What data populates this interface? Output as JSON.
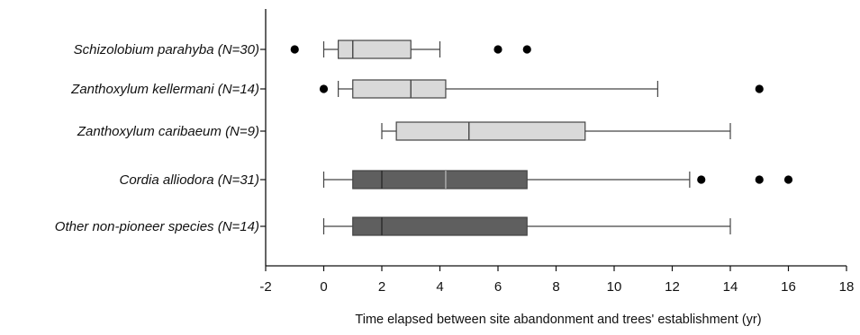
{
  "chart_data": {
    "type": "boxplot",
    "orientation": "horizontal",
    "title": "",
    "xlabel": "Time elapsed between site abandonment and trees' establishment (yr)",
    "ylabel": "",
    "xlim": [
      -2,
      18
    ],
    "xticks": [
      -2,
      0,
      2,
      4,
      6,
      8,
      10,
      12,
      14,
      16,
      18
    ],
    "grid": false,
    "legend": "none",
    "colors": {
      "pioneer_fill": "#d9d9d9",
      "nonpioneer_fill": "#5f5f5f",
      "line": "#444444",
      "outlier": "#000000"
    },
    "groups": [
      {
        "label": "Schizolobium parahyba (N=30)",
        "group": "pioneer",
        "whisker_low": 0,
        "q1": 0.5,
        "median": 1,
        "q3": 3,
        "whisker_high": 4,
        "mean": null,
        "outliers": [
          -1,
          6,
          7
        ]
      },
      {
        "label": "Zanthoxylum kellermani (N=14)",
        "group": "pioneer",
        "whisker_low": 0.5,
        "q1": 1,
        "median": 3,
        "q3": 4.2,
        "whisker_high": 11.5,
        "mean": null,
        "outliers": [
          0,
          15
        ]
      },
      {
        "label": "Zanthoxylum caribaeum (N=9)",
        "group": "pioneer",
        "whisker_low": 2,
        "q1": 2.5,
        "median": 5,
        "q3": 9,
        "whisker_high": 14,
        "mean": null,
        "outliers": []
      },
      {
        "label": "Cordia alliodora (N=31)",
        "group": "nonpioneer",
        "whisker_low": 0,
        "q1": 1,
        "median": 2,
        "q3": 7,
        "whisker_high": 12.6,
        "mean": 4.2,
        "outliers": [
          13,
          15,
          16
        ]
      },
      {
        "label": "Other non-pioneer species (N=14)",
        "group": "nonpioneer",
        "whisker_low": 0,
        "q1": 1,
        "median": 2,
        "q3": 7,
        "whisker_high": 14,
        "mean": null,
        "outliers": []
      }
    ]
  }
}
